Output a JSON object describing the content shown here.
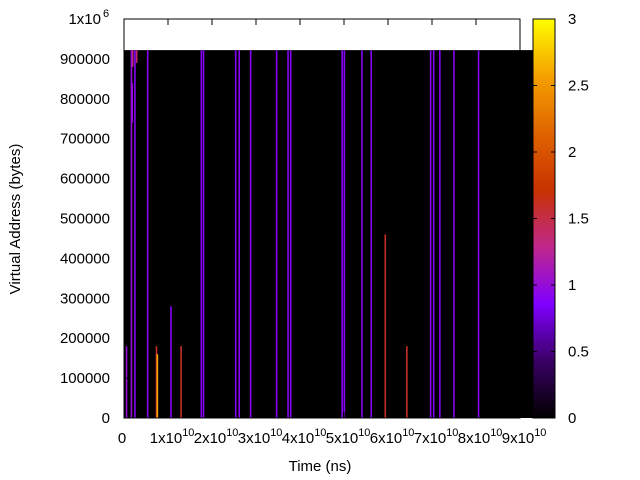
{
  "chart_data": {
    "type": "heatmap",
    "xlabel": "Time (ns)",
    "ylabel": "Virtual Address (bytes)",
    "xlim": [
      0,
      90000000000
    ],
    "ylim": [
      0,
      1000000
    ],
    "data_extent": {
      "x": [
        0,
        96000000000
      ],
      "y": [
        0,
        922000
      ]
    },
    "x_ticks": [
      {
        "value": 0,
        "base": "0",
        "exp": ""
      },
      {
        "value": 10000000000,
        "base": "1x10",
        "exp": "10"
      },
      {
        "value": 20000000000,
        "base": "2x10",
        "exp": "10"
      },
      {
        "value": 30000000000,
        "base": "3x10",
        "exp": "10"
      },
      {
        "value": 40000000000,
        "base": "4x10",
        "exp": "10"
      },
      {
        "value": 50000000000,
        "base": "5x10",
        "exp": "10"
      },
      {
        "value": 60000000000,
        "base": "6x10",
        "exp": "10"
      },
      {
        "value": 70000000000,
        "base": "7x10",
        "exp": "10"
      },
      {
        "value": 80000000000,
        "base": "8x10",
        "exp": "10"
      },
      {
        "value": 90000000000,
        "base": "9x10",
        "exp": "10"
      }
    ],
    "y_ticks": [
      {
        "value": 0,
        "base": "0",
        "exp": ""
      },
      {
        "value": 100000,
        "base": "100000",
        "exp": ""
      },
      {
        "value": 200000,
        "base": "200000",
        "exp": ""
      },
      {
        "value": 300000,
        "base": "300000",
        "exp": ""
      },
      {
        "value": 400000,
        "base": "400000",
        "exp": ""
      },
      {
        "value": 500000,
        "base": "500000",
        "exp": ""
      },
      {
        "value": 600000,
        "base": "600000",
        "exp": ""
      },
      {
        "value": 700000,
        "base": "700000",
        "exp": ""
      },
      {
        "value": 800000,
        "base": "800000",
        "exp": ""
      },
      {
        "value": 900000,
        "base": "900000",
        "exp": ""
      },
      {
        "value": 1000000,
        "base": "1x10",
        "exp": "6"
      }
    ],
    "colorbar": {
      "range": [
        0,
        3
      ],
      "ticks": [
        "0",
        "0.5",
        "1",
        "1.5",
        "2",
        "2.5",
        "3"
      ],
      "palette": [
        "#000000",
        "#3a0064",
        "#8000ff",
        "#c0288c",
        "#c83200",
        "#e06400",
        "#f5a000",
        "#ffff00"
      ]
    },
    "background_value": 0,
    "stripes": [
      {
        "x": 400000000,
        "y0": 0,
        "y1": 180000,
        "v": 1.0
      },
      {
        "x": 1500000000,
        "y0": 0,
        "y1": 922000,
        "v": 1.0
      },
      {
        "x": 1700000000,
        "y0": 740000,
        "y1": 840000,
        "v": 1.0
      },
      {
        "x": 1800000000,
        "y0": 880000,
        "y1": 922000,
        "v": 1.3
      },
      {
        "x": 2300000000,
        "y0": 0,
        "y1": 922000,
        "v": 0.9
      },
      {
        "x": 2700000000,
        "y0": 890000,
        "y1": 922000,
        "v": 1.4
      },
      {
        "x": 5200000000,
        "y0": 0,
        "y1": 922000,
        "v": 0.9
      },
      {
        "x": 7200000000,
        "y0": 0,
        "y1": 180000,
        "v": 1.6
      },
      {
        "x": 7400000000,
        "y0": 0,
        "y1": 160000,
        "v": 2.6
      },
      {
        "x": 10500000000,
        "y0": 0,
        "y1": 280000,
        "v": 0.9
      },
      {
        "x": 12800000000,
        "y0": 0,
        "y1": 180000,
        "v": 1.6
      },
      {
        "x": 17400000000,
        "y0": 0,
        "y1": 922000,
        "v": 0.9
      },
      {
        "x": 17900000000,
        "y0": 0,
        "y1": 922000,
        "v": 0.9
      },
      {
        "x": 25200000000,
        "y0": 0,
        "y1": 922000,
        "v": 0.9
      },
      {
        "x": 26000000000,
        "y0": 0,
        "y1": 922000,
        "v": 0.9
      },
      {
        "x": 28600000000,
        "y0": 0,
        "y1": 922000,
        "v": 0.9
      },
      {
        "x": 34500000000,
        "y0": 0,
        "y1": 922000,
        "v": 0.9
      },
      {
        "x": 37100000000,
        "y0": 0,
        "y1": 922000,
        "v": 0.9
      },
      {
        "x": 37700000000,
        "y0": 0,
        "y1": 922000,
        "v": 0.9
      },
      {
        "x": 49400000000,
        "y0": 0,
        "y1": 922000,
        "v": 0.9
      },
      {
        "x": 49900000000,
        "y0": 0,
        "y1": 922000,
        "v": 0.9
      },
      {
        "x": 53900000000,
        "y0": 0,
        "y1": 922000,
        "v": 0.9
      },
      {
        "x": 56000000000,
        "y0": 0,
        "y1": 922000,
        "v": 0.9
      },
      {
        "x": 59200000000,
        "y0": 0,
        "y1": 460000,
        "v": 1.6
      },
      {
        "x": 64100000000,
        "y0": 0,
        "y1": 180000,
        "v": 1.6
      },
      {
        "x": 69500000000,
        "y0": 0,
        "y1": 922000,
        "v": 0.9
      },
      {
        "x": 70200000000,
        "y0": 0,
        "y1": 922000,
        "v": 0.9
      },
      {
        "x": 71600000000,
        "y0": 0,
        "y1": 922000,
        "v": 0.9
      },
      {
        "x": 74800000000,
        "y0": 0,
        "y1": 922000,
        "v": 0.9
      },
      {
        "x": 80400000000,
        "y0": 0,
        "y1": 922000,
        "v": 0.9
      }
    ]
  }
}
